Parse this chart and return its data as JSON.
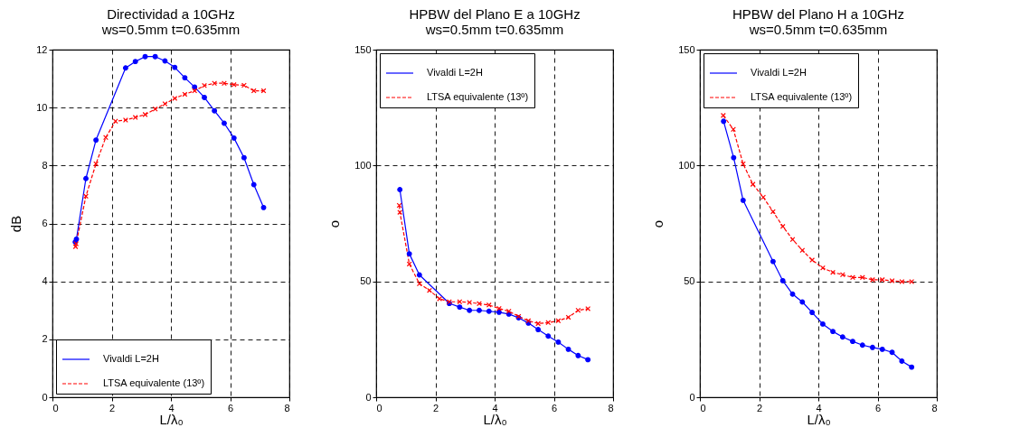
{
  "chart_data": [
    {
      "type": "line",
      "title": "Directividad a 10GHz",
      "subtitle": "ws=0.5mm t=0.635mm",
      "xlabel": "L/λ₀",
      "ylabel": "dB",
      "xlim": [
        0,
        8
      ],
      "xticks": [
        0,
        2,
        4,
        6,
        8
      ],
      "ylim": [
        0,
        12
      ],
      "yticks": [
        0,
        2,
        4,
        6,
        8,
        10,
        12
      ],
      "grid": true,
      "legend": "bottom",
      "series": [
        {
          "name": "Vivaldi L=2H",
          "color": "#0000ff",
          "marker": "circle",
          "line_style": "solid",
          "x": [
            0.77,
            0.81,
            1.13,
            1.47,
            2.47,
            2.8,
            3.13,
            3.47,
            3.8,
            4.13,
            4.47,
            4.8,
            5.13,
            5.47,
            5.8,
            6.13,
            6.47,
            6.8,
            7.13
          ],
          "values": [
            5.36,
            5.46,
            7.55,
            8.88,
            11.37,
            11.59,
            11.76,
            11.76,
            11.61,
            11.39,
            11.03,
            10.71,
            10.35,
            9.89,
            9.46,
            8.95,
            8.27,
            7.34,
            6.55
          ]
        },
        {
          "name": "LTSA equivalente (13º)",
          "color": "#ff0000",
          "marker": "cross",
          "line_style": "dashed",
          "x": [
            0.78,
            0.8,
            1.13,
            1.47,
            1.8,
            2.13,
            2.47,
            2.8,
            3.13,
            3.47,
            3.8,
            4.13,
            4.47,
            4.8,
            5.13,
            5.47,
            5.8,
            6.13,
            6.47,
            6.8,
            7.13
          ],
          "values": [
            5.2,
            5.3,
            6.94,
            8.06,
            8.97,
            9.53,
            9.57,
            9.66,
            9.76,
            9.95,
            10.13,
            10.32,
            10.46,
            10.58,
            10.76,
            10.84,
            10.84,
            10.79,
            10.77,
            10.58,
            10.58
          ]
        }
      ]
    },
    {
      "type": "line",
      "title": "HPBW del Plano E a 10GHz",
      "subtitle": "ws=0.5mm t=0.635mm",
      "xlabel": "L/λ₀",
      "ylabel": "o",
      "xlim": [
        0,
        8
      ],
      "xticks": [
        0,
        2,
        4,
        6,
        8
      ],
      "ylim": [
        0,
        150
      ],
      "yticks": [
        0,
        50,
        100,
        150
      ],
      "grid": true,
      "legend": "top",
      "series": [
        {
          "name": "Vivaldi L=2H",
          "color": "#0000ff",
          "marker": "circle",
          "line_style": "solid",
          "x": [
            0.8,
            1.12,
            1.46,
            2.47,
            2.82,
            3.15,
            3.48,
            3.81,
            4.15,
            4.48,
            4.81,
            5.14,
            5.47,
            5.81,
            6.15,
            6.49,
            6.82,
            7.15
          ],
          "values": [
            89.6,
            61.9,
            52.8,
            40.5,
            38.9,
            37.5,
            37.5,
            37.1,
            36.7,
            35.9,
            34.3,
            32.0,
            29.2,
            26.4,
            23.8,
            20.7,
            18.0,
            16.2
          ]
        },
        {
          "name": "LTSA equivalente (13º)",
          "color": "#ff0000",
          "marker": "cross",
          "line_style": "dashed",
          "x": [
            0.78,
            0.8,
            1.12,
            1.46,
            1.8,
            2.14,
            2.47,
            2.82,
            3.15,
            3.48,
            3.81,
            4.15,
            4.48,
            4.81,
            5.14,
            5.47,
            5.81,
            6.15,
            6.49,
            6.82,
            7.15
          ],
          "values": [
            82.8,
            79.8,
            57.5,
            49.0,
            46.1,
            42.5,
            41.2,
            41.2,
            40.9,
            40.4,
            39.8,
            38.3,
            37.1,
            34.9,
            33.0,
            31.8,
            32.2,
            33.0,
            34.5,
            37.5,
            38.2
          ]
        }
      ]
    },
    {
      "type": "line",
      "title": "HPBW del Plano H a 10GHz",
      "subtitle": "ws=0.5mm t=0.635mm",
      "xlabel": "L/λ₀",
      "ylabel": "o",
      "xlim": [
        0,
        8
      ],
      "xticks": [
        0,
        2,
        4,
        6,
        8
      ],
      "ylim": [
        0,
        150
      ],
      "yticks": [
        0,
        50,
        100,
        150
      ],
      "grid": true,
      "legend": "top",
      "series": [
        {
          "name": "Vivaldi L=2H",
          "color": "#0000ff",
          "marker": "circle",
          "line_style": "solid",
          "x": [
            0.8,
            1.14,
            1.46,
            2.47,
            2.8,
            3.13,
            3.46,
            3.79,
            4.15,
            4.49,
            4.82,
            5.16,
            5.49,
            5.83,
            6.16,
            6.49,
            6.82,
            7.15
          ],
          "values": [
            119.1,
            103.4,
            85.0,
            58.6,
            50.3,
            44.5,
            41.1,
            36.6,
            31.6,
            28.4,
            26.0,
            24.1,
            22.5,
            21.5,
            20.7,
            19.4,
            15.6,
            13.0
          ]
        },
        {
          "name": "LTSA equivalente (13º)",
          "color": "#ff0000",
          "marker": "cross",
          "line_style": "dashed",
          "x": [
            0.79,
            1.13,
            1.46,
            1.79,
            2.14,
            2.47,
            2.8,
            3.13,
            3.46,
            3.79,
            4.15,
            4.49,
            4.82,
            5.16,
            5.49,
            5.83,
            6.16,
            6.49,
            6.82,
            7.15
          ],
          "values": [
            121.6,
            115.6,
            100.7,
            91.9,
            86.3,
            80.1,
            73.7,
            68.1,
            63.4,
            59.2,
            55.8,
            53.9,
            52.9,
            51.7,
            51.7,
            50.7,
            50.7,
            50.3,
            49.9,
            49.9
          ]
        }
      ]
    }
  ]
}
